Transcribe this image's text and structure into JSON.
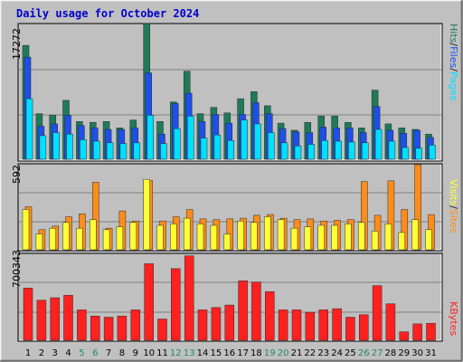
{
  "title": "Daily usage for October 2024",
  "colors": {
    "background": "#c0c0c0",
    "hits": "#1f7a5a",
    "files": "#1e4fe8",
    "pages": "#00e0ff",
    "visits": "#ffff33",
    "sites": "#ff8c1a",
    "kbytes": "#ff2020",
    "weekend_day": "#1f8a6a",
    "title": "#0000cc"
  },
  "panel_labels": {
    "top": {
      "pages": "Pages",
      "files": "Files",
      "hits": "Hits",
      "sep": "/",
      "max": "17272"
    },
    "middle": {
      "sites": "Sites",
      "visits": "Visits",
      "sep": "/",
      "max": "592"
    },
    "bottom": {
      "kbytes": "KBytes",
      "max": "700343"
    }
  },
  "chart_data": [
    {
      "type": "bar",
      "title": "Daily usage for October 2024",
      "categories": [
        "1",
        "2",
        "3",
        "4",
        "5",
        "6",
        "7",
        "8",
        "9",
        "10",
        "11",
        "12",
        "13",
        "14",
        "15",
        "16",
        "17",
        "18",
        "19",
        "20",
        "21",
        "22",
        "23",
        "24",
        "25",
        "26",
        "27",
        "28",
        "29",
        "30",
        "31"
      ],
      "weekend_days": [
        "5",
        "6",
        "12",
        "13",
        "19",
        "20",
        "26",
        "27"
      ],
      "ylim": [
        0,
        17272
      ],
      "series": [
        {
          "name": "Hits",
          "values": [
            14500,
            5800,
            5600,
            7500,
            4800,
            4700,
            4800,
            4000,
            5000,
            17272,
            4800,
            7300,
            11200,
            5800,
            6600,
            5900,
            7700,
            8600,
            6800,
            4600,
            3700,
            4700,
            5500,
            5500,
            4700,
            4000,
            8800,
            4500,
            4000,
            3800,
            3200
          ]
        },
        {
          "name": "Files",
          "values": [
            13000,
            4200,
            4500,
            5600,
            4300,
            4000,
            3800,
            3800,
            4000,
            11000,
            3200,
            7100,
            8400,
            4800,
            5700,
            4600,
            5700,
            7200,
            5800,
            3900,
            3500,
            3400,
            4100,
            4000,
            4000,
            3400,
            6700,
            3700,
            3300,
            3700,
            2800
          ]
        },
        {
          "name": "Pages",
          "values": [
            7700,
            3000,
            3400,
            3200,
            2500,
            2300,
            2100,
            2000,
            2100,
            5600,
            2000,
            3900,
            5500,
            2700,
            3100,
            2400,
            5000,
            4500,
            3400,
            2100,
            1700,
            1900,
            2400,
            2300,
            2200,
            2100,
            3800,
            2300,
            1500,
            1400,
            1800
          ]
        }
      ]
    },
    {
      "type": "bar",
      "categories": [
        "1",
        "2",
        "3",
        "4",
        "5",
        "6",
        "7",
        "8",
        "9",
        "10",
        "11",
        "12",
        "13",
        "14",
        "15",
        "16",
        "17",
        "18",
        "19",
        "20",
        "21",
        "22",
        "23",
        "24",
        "25",
        "26",
        "27",
        "28",
        "29",
        "30",
        "31"
      ],
      "ylim": [
        0,
        592
      ],
      "series": [
        {
          "name": "Sites",
          "values": [
            300,
            140,
            165,
            230,
            250,
            470,
            150,
            270,
            200,
            480,
            200,
            230,
            280,
            215,
            210,
            215,
            220,
            240,
            245,
            220,
            210,
            215,
            200,
            205,
            210,
            475,
            240,
            480,
            280,
            592,
            245
          ]
        },
        {
          "name": "Visits",
          "values": [
            280,
            110,
            150,
            190,
            150,
            210,
            140,
            160,
            190,
            490,
            170,
            180,
            220,
            180,
            170,
            110,
            200,
            190,
            230,
            210,
            150,
            160,
            170,
            170,
            180,
            190,
            130,
            180,
            120,
            210,
            140
          ]
        }
      ]
    },
    {
      "type": "bar",
      "categories": [
        "1",
        "2",
        "3",
        "4",
        "5",
        "6",
        "7",
        "8",
        "9",
        "10",
        "11",
        "12",
        "13",
        "14",
        "15",
        "16",
        "17",
        "18",
        "19",
        "20",
        "21",
        "22",
        "23",
        "24",
        "25",
        "26",
        "27",
        "28",
        "29",
        "30",
        "31"
      ],
      "ylim": [
        0,
        700343
      ],
      "series": [
        {
          "name": "KBytes",
          "values": [
            430000,
            330000,
            350000,
            370000,
            250000,
            200000,
            190000,
            200000,
            250000,
            630000,
            175000,
            590000,
            695000,
            250000,
            270000,
            290000,
            490000,
            480000,
            400000,
            250000,
            250000,
            230000,
            250000,
            260000,
            190000,
            210000,
            450000,
            300000,
            70000,
            135000,
            140000
          ]
        }
      ]
    }
  ]
}
